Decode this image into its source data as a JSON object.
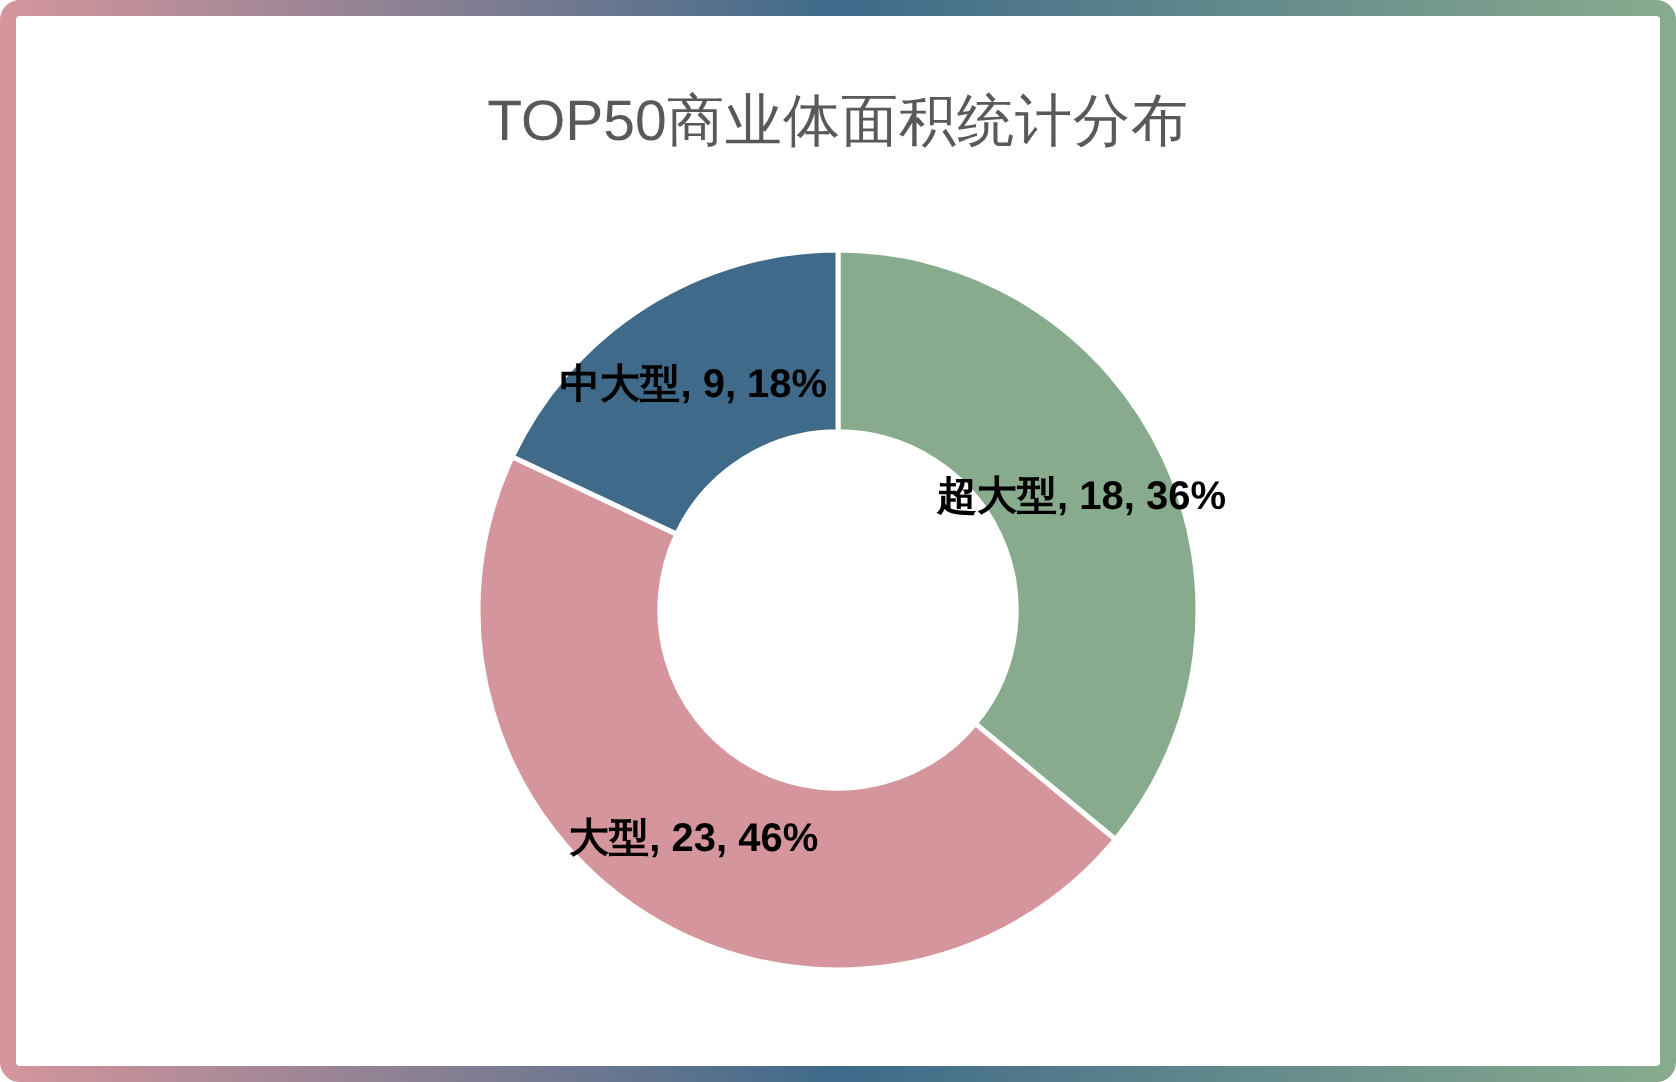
{
  "chart_data": {
    "type": "donut",
    "title": "TOP50商业体面积统计分布",
    "categories": [
      "超大型",
      "大型",
      "中大型"
    ],
    "values": [
      18,
      23,
      9
    ],
    "colors": [
      "#88ab8e",
      "#d4959c",
      "#3f6a8a"
    ],
    "value_labels": [
      ", 18, 36%",
      ", 23, 46%",
      ", 9, 18%"
    ]
  }
}
